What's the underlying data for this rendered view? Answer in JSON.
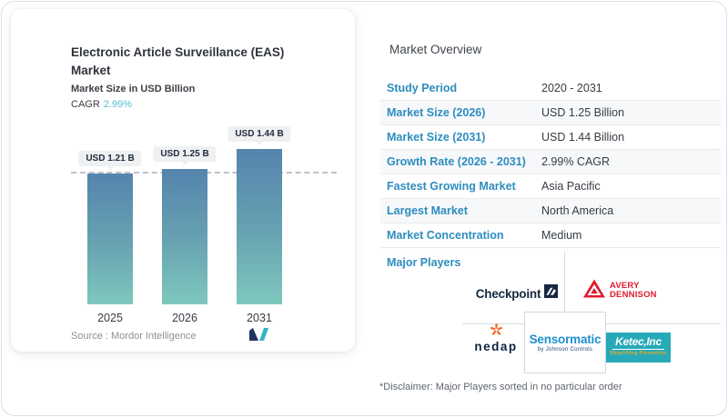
{
  "card": {
    "title": "Electronic Article Surveillance (EAS) Market",
    "subtitle": "Market Size in USD Billion",
    "cagr_label": "CAGR",
    "cagr_value": "2.99%",
    "source_text": "Source :  Mordor Intelligence"
  },
  "chart_data": {
    "type": "bar",
    "title": "Electronic Article Surveillance (EAS) Market",
    "ylabel": "Market Size in USD Billion",
    "categories": [
      "2025",
      "2026",
      "2031"
    ],
    "values": [
      1.21,
      1.25,
      1.44
    ],
    "bar_labels": [
      "USD 1.21 B",
      "USD 1.25 B",
      "USD 1.44 B"
    ],
    "cagr": "2.99%",
    "dashed_reference_value": 1.21,
    "ylim": [
      0,
      1.55
    ],
    "grid": "off",
    "legend": "none",
    "bar_gradient": [
      "#5584ad",
      "#7ec8bd"
    ]
  },
  "overview": {
    "heading": "Market Overview",
    "rows": [
      {
        "label": "Study Period",
        "value": "2020 - 2031"
      },
      {
        "label": "Market Size (2026)",
        "value": "USD 1.25 Billion"
      },
      {
        "label": "Market Size (2031)",
        "value": "USD 1.44 Billion"
      },
      {
        "label": "Growth Rate (2026 - 2031)",
        "value": "2.99% CAGR"
      },
      {
        "label": "Fastest Growing Market",
        "value": "Asia Pacific"
      },
      {
        "label": "Largest Market",
        "value": "North America"
      },
      {
        "label": "Market Concentration",
        "value": "Medium"
      }
    ],
    "major_players_label": "Major Players",
    "disclaimer": "*Disclaimer: Major Players sorted in no particular order"
  },
  "logos": {
    "checkpoint": "Checkpoint",
    "avery_line1": "AVERY",
    "avery_line2": "DENNISON",
    "nedap": "nedap",
    "sensormatic": "Sensormatic",
    "sensormatic_sub": "by Johnson Controls",
    "ketec": "Ketec,Inc",
    "ketec_sub": "Shoplifting Prevention"
  },
  "colors": {
    "table_label_blue": "#2d8dbe",
    "cagr_teal": "#4fc0cd",
    "bar_top": "#5584ad",
    "bar_bottom": "#7ec8bd",
    "checkpoint_navy": "#162740",
    "avery_red": "#e11b2d",
    "nedap_orange": "#f26a21",
    "sensormatic_blue": "#2090cf",
    "ketec_teal": "#27a9b8",
    "ketec_orange": "#f7a823"
  }
}
